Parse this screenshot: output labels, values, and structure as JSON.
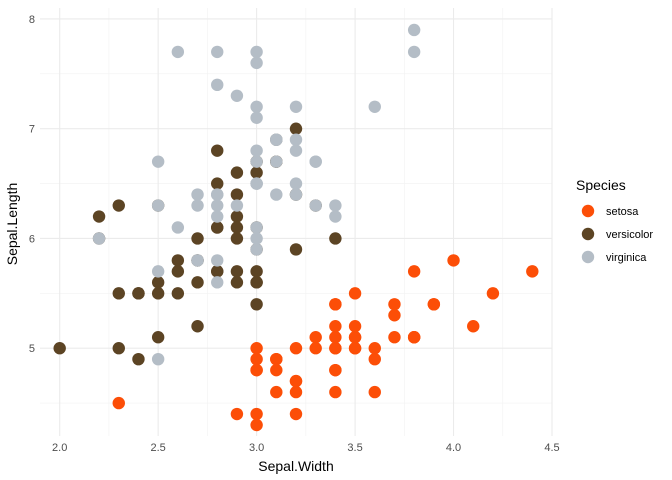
{
  "chart_data": {
    "type": "scatter",
    "xlabel": "Sepal.Width",
    "ylabel": "Sepal.Length",
    "xlim": [
      1.9,
      4.5
    ],
    "ylim": [
      4.2,
      8.1
    ],
    "x_ticks": [
      2.0,
      2.5,
      3.0,
      3.5,
      4.0,
      4.5
    ],
    "x_tick_labels": [
      "2.0",
      "2.5",
      "3.0",
      "3.5",
      "4.0",
      "4.5"
    ],
    "y_ticks": [
      5,
      6,
      7,
      8
    ],
    "y_tick_labels": [
      "5",
      "6",
      "7",
      "8"
    ],
    "grid": true,
    "legend": {
      "title": "Species",
      "placement": "right"
    },
    "series": [
      {
        "name": "setosa",
        "color": "#FC4E07",
        "points": [
          [
            3.5,
            5.1
          ],
          [
            3.0,
            4.9
          ],
          [
            3.2,
            4.7
          ],
          [
            3.1,
            4.6
          ],
          [
            3.6,
            5.0
          ],
          [
            3.9,
            5.4
          ],
          [
            3.4,
            4.6
          ],
          [
            3.4,
            5.0
          ],
          [
            2.9,
            4.4
          ],
          [
            3.1,
            4.9
          ],
          [
            3.7,
            5.4
          ],
          [
            3.4,
            4.8
          ],
          [
            3.0,
            4.8
          ],
          [
            3.0,
            4.3
          ],
          [
            4.0,
            5.8
          ],
          [
            4.4,
            5.7
          ],
          [
            3.9,
            5.4
          ],
          [
            3.5,
            5.1
          ],
          [
            3.8,
            5.7
          ],
          [
            3.8,
            5.1
          ],
          [
            3.4,
            5.4
          ],
          [
            3.7,
            5.1
          ],
          [
            3.6,
            4.6
          ],
          [
            3.3,
            5.1
          ],
          [
            3.4,
            4.8
          ],
          [
            3.0,
            5.0
          ],
          [
            3.4,
            5.0
          ],
          [
            3.5,
            5.2
          ],
          [
            3.4,
            5.2
          ],
          [
            3.2,
            4.7
          ],
          [
            3.1,
            4.8
          ],
          [
            3.4,
            5.4
          ],
          [
            4.1,
            5.2
          ],
          [
            4.2,
            5.5
          ],
          [
            3.1,
            4.9
          ],
          [
            3.2,
            5.0
          ],
          [
            3.5,
            5.5
          ],
          [
            3.6,
            4.9
          ],
          [
            3.0,
            4.4
          ],
          [
            3.4,
            5.1
          ],
          [
            3.5,
            5.0
          ],
          [
            2.3,
            4.5
          ],
          [
            3.2,
            4.4
          ],
          [
            3.5,
            5.0
          ],
          [
            3.8,
            5.1
          ],
          [
            3.0,
            4.8
          ],
          [
            3.8,
            5.1
          ],
          [
            3.2,
            4.6
          ],
          [
            3.7,
            5.3
          ],
          [
            3.3,
            5.0
          ]
        ]
      },
      {
        "name": "versicolor",
        "color": "#5C4424",
        "points": [
          [
            3.2,
            7.0
          ],
          [
            3.2,
            6.4
          ],
          [
            3.1,
            6.9
          ],
          [
            2.3,
            5.5
          ],
          [
            2.8,
            6.5
          ],
          [
            2.8,
            5.7
          ],
          [
            3.3,
            6.3
          ],
          [
            2.4,
            4.9
          ],
          [
            2.9,
            6.6
          ],
          [
            2.7,
            5.2
          ],
          [
            2.0,
            5.0
          ],
          [
            3.0,
            5.9
          ],
          [
            2.2,
            6.0
          ],
          [
            2.9,
            6.1
          ],
          [
            2.9,
            5.6
          ],
          [
            3.1,
            6.7
          ],
          [
            3.0,
            5.6
          ],
          [
            2.7,
            5.8
          ],
          [
            2.2,
            6.2
          ],
          [
            2.5,
            5.6
          ],
          [
            3.2,
            5.9
          ],
          [
            2.8,
            6.1
          ],
          [
            2.5,
            6.3
          ],
          [
            2.8,
            6.1
          ],
          [
            2.9,
            6.4
          ],
          [
            3.0,
            6.6
          ],
          [
            2.8,
            6.8
          ],
          [
            3.0,
            6.7
          ],
          [
            2.9,
            6.0
          ],
          [
            2.6,
            5.7
          ],
          [
            2.4,
            5.5
          ],
          [
            2.4,
            5.5
          ],
          [
            2.7,
            5.8
          ],
          [
            2.7,
            6.0
          ],
          [
            3.0,
            5.4
          ],
          [
            3.4,
            6.0
          ],
          [
            3.1,
            6.7
          ],
          [
            2.3,
            6.3
          ],
          [
            3.0,
            5.6
          ],
          [
            2.5,
            5.5
          ],
          [
            2.6,
            5.5
          ],
          [
            3.0,
            6.1
          ],
          [
            2.6,
            5.8
          ],
          [
            2.3,
            5.0
          ],
          [
            2.7,
            5.6
          ],
          [
            3.0,
            5.7
          ],
          [
            2.9,
            5.7
          ],
          [
            2.9,
            6.2
          ],
          [
            2.5,
            5.1
          ],
          [
            2.8,
            5.7
          ]
        ]
      },
      {
        "name": "virginica",
        "color": "#B4BDC6",
        "points": [
          [
            3.3,
            6.3
          ],
          [
            2.7,
            5.8
          ],
          [
            3.0,
            7.1
          ],
          [
            2.9,
            6.3
          ],
          [
            3.0,
            6.5
          ],
          [
            3.0,
            7.6
          ],
          [
            2.5,
            4.9
          ],
          [
            2.9,
            7.3
          ],
          [
            2.5,
            6.7
          ],
          [
            3.6,
            7.2
          ],
          [
            3.2,
            6.5
          ],
          [
            2.7,
            6.4
          ],
          [
            3.0,
            6.8
          ],
          [
            2.5,
            5.7
          ],
          [
            2.8,
            5.8
          ],
          [
            3.2,
            6.4
          ],
          [
            3.0,
            6.5
          ],
          [
            3.8,
            7.7
          ],
          [
            2.6,
            7.7
          ],
          [
            2.2,
            6.0
          ],
          [
            3.2,
            6.9
          ],
          [
            2.8,
            5.6
          ],
          [
            2.8,
            7.7
          ],
          [
            2.7,
            6.3
          ],
          [
            3.3,
            6.7
          ],
          [
            3.2,
            7.2
          ],
          [
            2.8,
            6.2
          ],
          [
            3.0,
            6.1
          ],
          [
            2.8,
            6.4
          ],
          [
            3.0,
            7.2
          ],
          [
            2.8,
            7.4
          ],
          [
            3.8,
            7.9
          ],
          [
            2.8,
            6.4
          ],
          [
            2.8,
            6.3
          ],
          [
            2.6,
            6.1
          ],
          [
            3.0,
            7.7
          ],
          [
            3.4,
            6.3
          ],
          [
            3.1,
            6.4
          ],
          [
            3.0,
            6.0
          ],
          [
            3.1,
            6.9
          ],
          [
            3.1,
            6.7
          ],
          [
            3.1,
            6.9
          ],
          [
            2.7,
            5.8
          ],
          [
            3.2,
            6.8
          ],
          [
            3.3,
            6.7
          ],
          [
            3.0,
            6.7
          ],
          [
            2.5,
            6.3
          ],
          [
            3.0,
            6.5
          ],
          [
            3.4,
            6.2
          ],
          [
            3.0,
            5.9
          ]
        ]
      }
    ]
  }
}
